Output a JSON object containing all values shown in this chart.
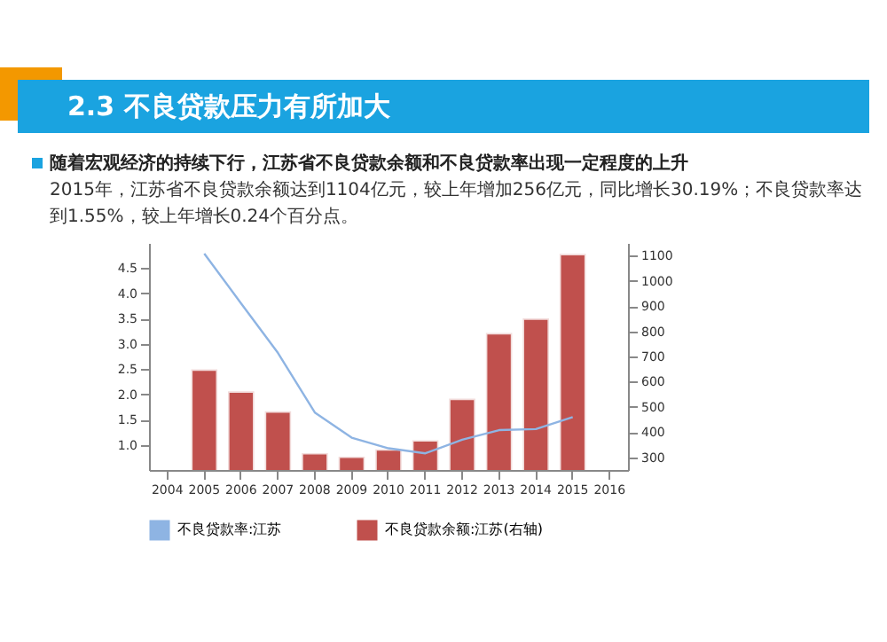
{
  "chart_data": {
    "type": "bar",
    "title": "2.3 不良贷款压力有所加大",
    "subtitle": "随着宏观经济的持续下行，江苏省不良贷款余额和不良贷款率出现一定程度的上升",
    "annotations": [
      "2015年，江苏省不良贷款余额达到1104亿元，较上年增加256亿元，同比增长30.19%；不良贷款率达到1.55%，较上年增长0.24个百分点。"
    ],
    "categories": [
      "2004",
      "2005",
      "2006",
      "2007",
      "2008",
      "2009",
      "2010",
      "2011",
      "2012",
      "2013",
      "2014",
      "2015",
      "2016"
    ],
    "series": [
      {
        "name": "不良贷款率:江苏",
        "type": "line",
        "color": "#8eb4e3",
        "values": [
          null,
          4.79,
          3.8,
          2.82,
          1.64,
          1.14,
          0.93,
          0.83,
          1.1,
          1.29,
          1.31,
          1.55,
          null
        ]
      },
      {
        "name": "不良贷款余额:江苏(右轴)",
        "axis": "y2",
        "color": "#c0504d",
        "values": [
          null,
          646,
          559,
          480,
          314,
          300,
          329,
          365,
          530,
          790,
          848,
          1104,
          null
        ]
      }
    ],
    "ylim": [
      0.5,
      5.0
    ],
    "yticks": [
      {
        "value": 1,
        "label": "1.0"
      },
      1.5,
      {
        "value": 2,
        "label": "2.0"
      },
      2.5,
      {
        "value": 3,
        "label": "3.0"
      },
      3.5,
      {
        "value": 4,
        "label": "4.0"
      },
      4.5
    ],
    "y2lim": [
      250,
      1150
    ],
    "y2ticks": [
      300,
      400,
      500,
      600,
      700,
      800,
      900,
      1000,
      1100
    ],
    "legend": "bottom"
  }
}
